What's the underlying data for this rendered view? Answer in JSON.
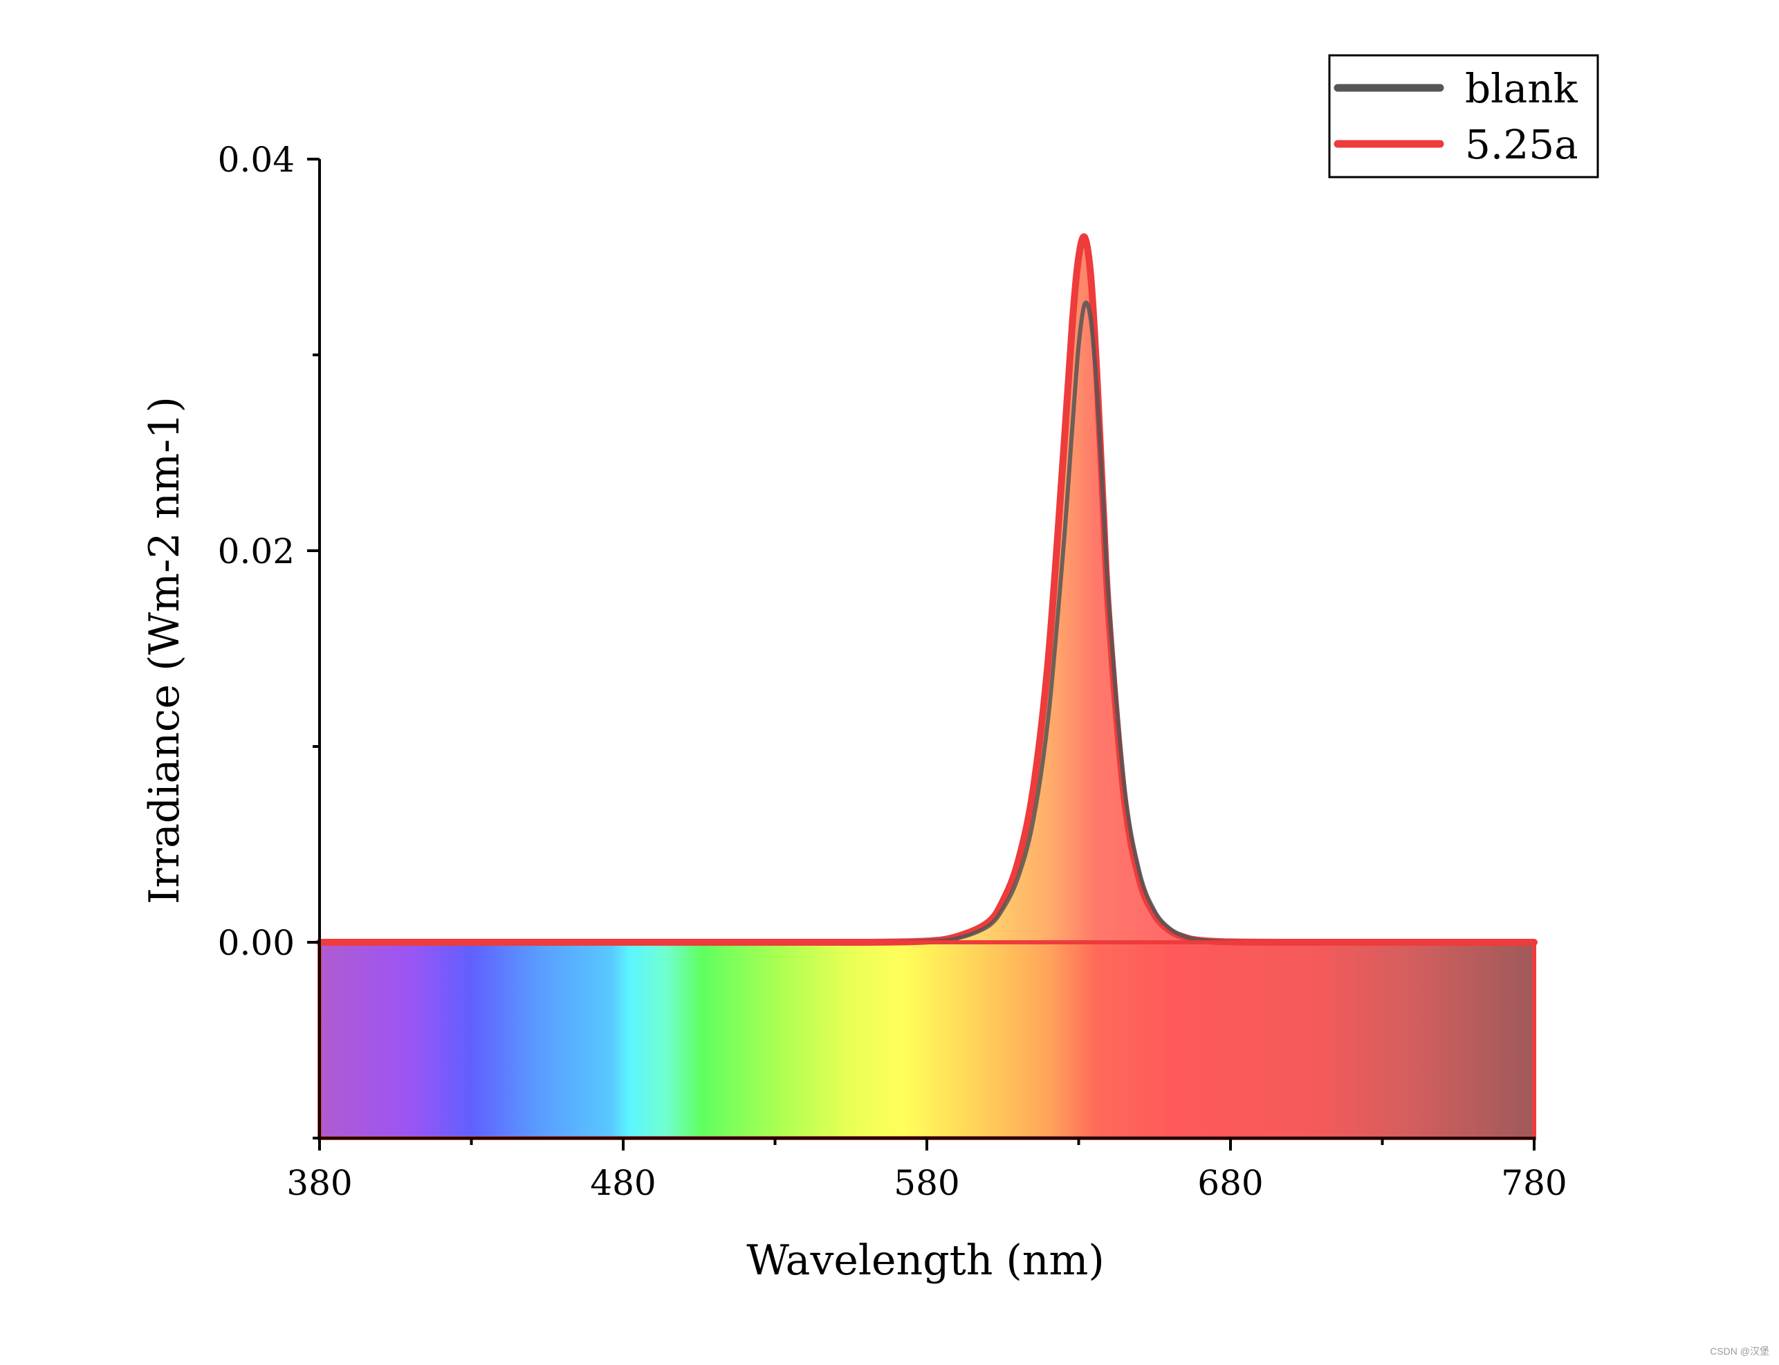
{
  "chart_data": {
    "type": "area",
    "title": "",
    "xlabel": "Wavelength (nm)",
    "ylabel": "Irradiance (Wm-2 nm-1)",
    "xlim": [
      380,
      780
    ],
    "ylim": [
      -0.01,
      0.04
    ],
    "x_ticks": [
      380,
      480,
      580,
      680,
      780
    ],
    "x_tick_labels": [
      "380",
      "480",
      "580",
      "680",
      "780"
    ],
    "x_minor_step": 50,
    "y_ticks": [
      0.0,
      0.02,
      0.04
    ],
    "y_tick_labels": [
      "0.00",
      "0.02",
      "0.04"
    ],
    "y_minor_step": 0.01,
    "grid": false,
    "legend_position": "top-right",
    "background": "visible-spectrum color band",
    "x": [
      380,
      400,
      420,
      440,
      460,
      480,
      500,
      520,
      540,
      560,
      580,
      590,
      600,
      605,
      610,
      615,
      620,
      625,
      628,
      630,
      632,
      634,
      636,
      638,
      640,
      645,
      650,
      655,
      660,
      665,
      670,
      680,
      700,
      720,
      740,
      760,
      780
    ],
    "series": [
      {
        "name": "blank",
        "color": "#555555",
        "values": [
          0,
          0,
          0,
          0,
          0,
          0,
          0,
          0,
          0,
          0,
          5e-05,
          0.0002,
          0.0008,
          0.0017,
          0.0033,
          0.0062,
          0.0115,
          0.0202,
          0.0265,
          0.0305,
          0.0326,
          0.0318,
          0.0282,
          0.0228,
          0.0172,
          0.008,
          0.0036,
          0.0016,
          0.0007,
          0.0003,
          0.00012,
          2e-05,
          0,
          0,
          0,
          0,
          0
        ]
      },
      {
        "name": "5.25a",
        "color": "#ee3b3b",
        "values": [
          0,
          0,
          0,
          0,
          0,
          0,
          0,
          0,
          0,
          0,
          6e-05,
          0.0003,
          0.001,
          0.0021,
          0.0041,
          0.0078,
          0.0145,
          0.025,
          0.0318,
          0.035,
          0.036,
          0.034,
          0.029,
          0.0225,
          0.0165,
          0.0074,
          0.0032,
          0.0014,
          0.0006,
          0.00025,
          0.0001,
          2e-05,
          0,
          0,
          0,
          0,
          0
        ]
      }
    ]
  },
  "watermark": "CSDN @汉堡"
}
